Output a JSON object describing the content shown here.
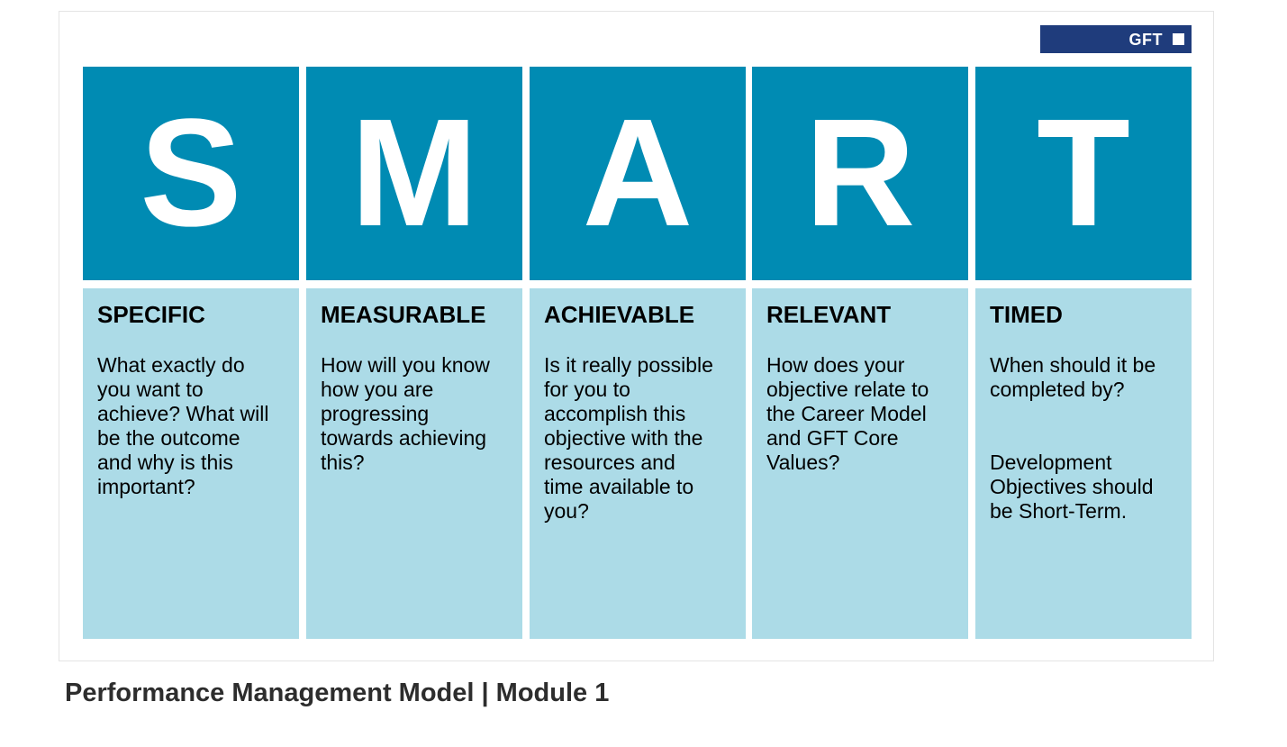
{
  "brand": {
    "logo_text": "GFT",
    "logo_color": "#1f3c7c"
  },
  "colors": {
    "letter_bg": "#008bb3",
    "description_bg": "#acdbe7"
  },
  "columns": [
    {
      "letter": "S",
      "title": "SPECIFIC",
      "text": "What exactly do\nyou want to\nachieve? What will\nbe the outcome\nand why is this\nimportant?"
    },
    {
      "letter": "M",
      "title": "MEASURABLE",
      "text": "How will you know\nhow you are\nprogressing\ntowards achieving\nthis?"
    },
    {
      "letter": "A",
      "title": "ACHIEVABLE",
      "text": "Is it really possible\nfor you to\naccomplish this\nobjective with the\nresources and\ntime available to\nyou?"
    },
    {
      "letter": "R",
      "title": "RELEVANT",
      "text": "How does your\nobjective relate to\nthe Career Model\nand GFT Core\nValues?"
    },
    {
      "letter": "T",
      "title": "TIMED",
      "text": "When should it be\ncompleted by?",
      "text_2": "Development\nObjectives should\nbe Short-Term."
    }
  ],
  "caption": "Performance Management Model | Module 1"
}
